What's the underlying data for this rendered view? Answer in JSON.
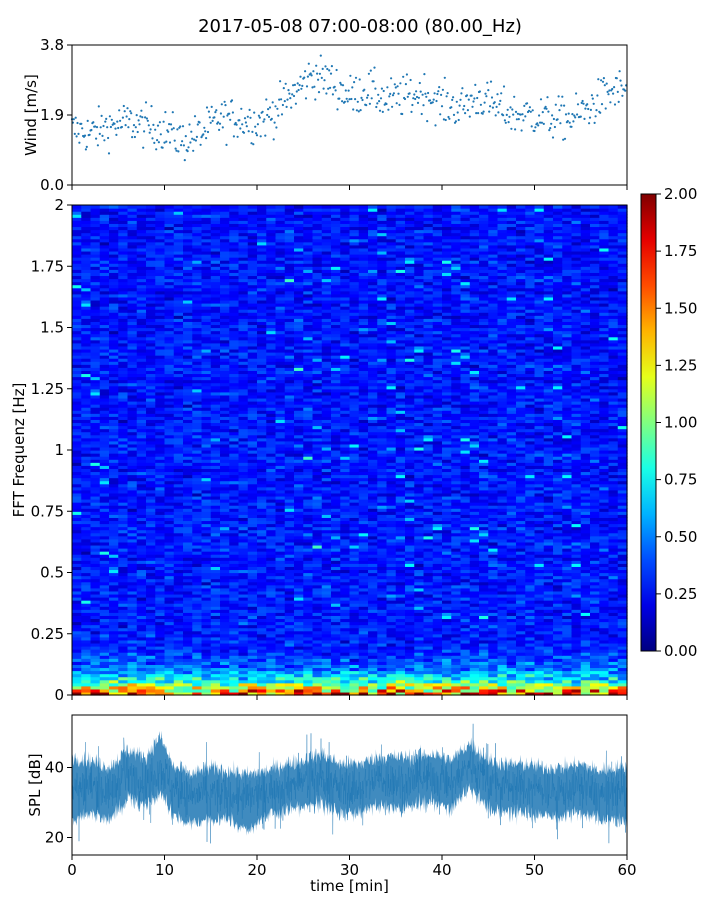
{
  "chart_data": [
    {
      "type": "scatter",
      "title": "2017-05-08 07:00-08:00 (80.00_Hz)",
      "ylabel": "Wind [m/s]",
      "xlim": [
        0,
        60
      ],
      "ylim": [
        0.0,
        3.8
      ],
      "yticks": [
        "0.0",
        "1.9",
        "3.8"
      ],
      "color": "#1f77b4",
      "x_step": 0.1,
      "trend": [
        {
          "x": 0,
          "y": 1.5
        },
        {
          "x": 2,
          "y": 1.4
        },
        {
          "x": 4,
          "y": 1.6
        },
        {
          "x": 6,
          "y": 1.7
        },
        {
          "x": 8,
          "y": 1.6
        },
        {
          "x": 10,
          "y": 1.5
        },
        {
          "x": 12,
          "y": 1.2
        },
        {
          "x": 14,
          "y": 1.4
        },
        {
          "x": 16,
          "y": 1.8
        },
        {
          "x": 18,
          "y": 1.8
        },
        {
          "x": 20,
          "y": 1.7
        },
        {
          "x": 22,
          "y": 2.0
        },
        {
          "x": 24,
          "y": 2.5
        },
        {
          "x": 26,
          "y": 3.0
        },
        {
          "x": 28,
          "y": 2.8
        },
        {
          "x": 30,
          "y": 2.4
        },
        {
          "x": 32,
          "y": 2.6
        },
        {
          "x": 34,
          "y": 2.3
        },
        {
          "x": 36,
          "y": 2.4
        },
        {
          "x": 38,
          "y": 2.5
        },
        {
          "x": 40,
          "y": 2.2
        },
        {
          "x": 42,
          "y": 2.1
        },
        {
          "x": 44,
          "y": 2.4
        },
        {
          "x": 46,
          "y": 2.1
        },
        {
          "x": 48,
          "y": 1.9
        },
        {
          "x": 50,
          "y": 1.9
        },
        {
          "x": 52,
          "y": 1.8
        },
        {
          "x": 54,
          "y": 1.8
        },
        {
          "x": 56,
          "y": 2.1
        },
        {
          "x": 58,
          "y": 2.5
        },
        {
          "x": 60,
          "y": 2.6
        }
      ]
    },
    {
      "type": "heatmap",
      "ylabel": "FFT Frequenz [Hz]",
      "xlim": [
        0,
        60
      ],
      "ylim": [
        0,
        2
      ],
      "yticks": [
        "0",
        "0.25",
        "0.5",
        "0.75",
        "1",
        "1.25",
        "1.5",
        "1.75",
        "2"
      ],
      "colorbar": {
        "range": [
          0.0,
          2.0
        ],
        "ticks": [
          "0.00",
          "0.25",
          "0.50",
          "0.75",
          "1.00",
          "1.25",
          "1.50",
          "1.75",
          "2.00"
        ],
        "colormap": "jet"
      },
      "time_bins": 60,
      "freq_bins": 160,
      "typical_value": 0.3,
      "low_frequency_values": [
        {
          "freq": 0.0,
          "value": 1.7
        },
        {
          "freq": 0.05,
          "value": 0.9
        },
        {
          "freq": 0.1,
          "value": 0.5
        },
        {
          "freq": 0.2,
          "value": 0.3
        },
        {
          "freq": 2.0,
          "value": 0.28
        }
      ]
    },
    {
      "type": "line",
      "ylabel": "SPL [dB]",
      "xlabel": "time [min]",
      "xlim": [
        0,
        60
      ],
      "ylim": [
        15,
        55
      ],
      "yticks": [
        "20",
        "40"
      ],
      "xticks": [
        "0",
        "10",
        "20",
        "30",
        "40",
        "50",
        "60"
      ],
      "color": "#1f77b4",
      "band": [
        {
          "x": 0,
          "mean": 34,
          "low": 25,
          "high": 43
        },
        {
          "x": 2,
          "mean": 35,
          "low": 27,
          "high": 42
        },
        {
          "x": 4,
          "mean": 33,
          "low": 25,
          "high": 40
        },
        {
          "x": 6,
          "mean": 38,
          "low": 31,
          "high": 45
        },
        {
          "x": 8,
          "mean": 36,
          "low": 29,
          "high": 43
        },
        {
          "x": 9.5,
          "mean": 40,
          "low": 33,
          "high": 49
        },
        {
          "x": 11,
          "mean": 34,
          "low": 26,
          "high": 40
        },
        {
          "x": 13,
          "mean": 32,
          "low": 24,
          "high": 38
        },
        {
          "x": 15,
          "mean": 33,
          "low": 25,
          "high": 40
        },
        {
          "x": 17,
          "mean": 32,
          "low": 25,
          "high": 39
        },
        {
          "x": 19,
          "mean": 31,
          "low": 22,
          "high": 38
        },
        {
          "x": 21,
          "mean": 33,
          "low": 26,
          "high": 39
        },
        {
          "x": 23,
          "mean": 35,
          "low": 28,
          "high": 41
        },
        {
          "x": 25,
          "mean": 36,
          "low": 29,
          "high": 42
        },
        {
          "x": 27,
          "mean": 37,
          "low": 29,
          "high": 44
        },
        {
          "x": 29,
          "mean": 34,
          "low": 27,
          "high": 41
        },
        {
          "x": 31,
          "mean": 34,
          "low": 27,
          "high": 41
        },
        {
          "x": 33,
          "mean": 37,
          "low": 29,
          "high": 43
        },
        {
          "x": 35,
          "mean": 36,
          "low": 28,
          "high": 43
        },
        {
          "x": 37,
          "mean": 36,
          "low": 29,
          "high": 43
        },
        {
          "x": 39,
          "mean": 37,
          "low": 30,
          "high": 44
        },
        {
          "x": 41,
          "mean": 35,
          "low": 28,
          "high": 42
        },
        {
          "x": 43,
          "mean": 41,
          "low": 34,
          "high": 47
        },
        {
          "x": 45,
          "mean": 36,
          "low": 28,
          "high": 42
        },
        {
          "x": 47,
          "mean": 35,
          "low": 27,
          "high": 41
        },
        {
          "x": 49,
          "mean": 34,
          "low": 27,
          "high": 41
        },
        {
          "x": 51,
          "mean": 34,
          "low": 26,
          "high": 40
        },
        {
          "x": 53,
          "mean": 33,
          "low": 26,
          "high": 40
        },
        {
          "x": 55,
          "mean": 35,
          "low": 27,
          "high": 41
        },
        {
          "x": 57,
          "mean": 32,
          "low": 25,
          "high": 39
        },
        {
          "x": 59,
          "mean": 33,
          "low": 25,
          "high": 40
        },
        {
          "x": 60,
          "mean": 33,
          "low": 25,
          "high": 40
        }
      ]
    }
  ]
}
